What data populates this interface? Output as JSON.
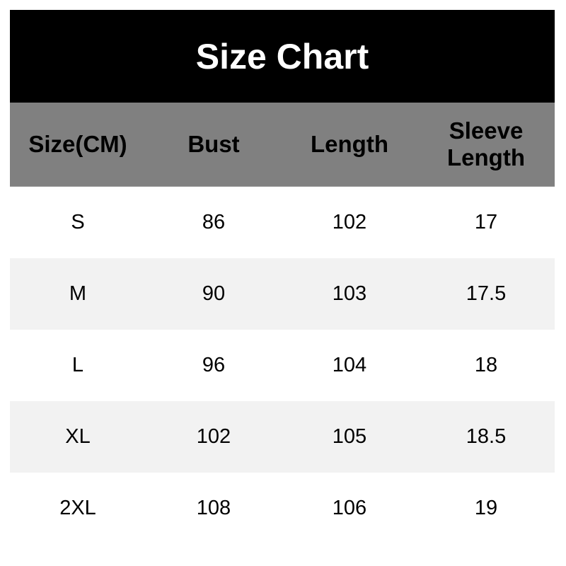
{
  "title": "Size Chart",
  "headers": [
    "Size(CM)",
    "Bust",
    "Length",
    "Sleeve Length"
  ],
  "rows": [
    [
      "S",
      "86",
      "102",
      "17"
    ],
    [
      "M",
      "90",
      "103",
      "17.5"
    ],
    [
      "L",
      "96",
      "104",
      "18"
    ],
    [
      "XL",
      "102",
      "105",
      "18.5"
    ],
    [
      "2XL",
      "108",
      "106",
      "19"
    ]
  ],
  "colors": {
    "title_bg": "#000000",
    "header_bg": "#808080",
    "alt_row_bg": "#f2f2f2"
  }
}
